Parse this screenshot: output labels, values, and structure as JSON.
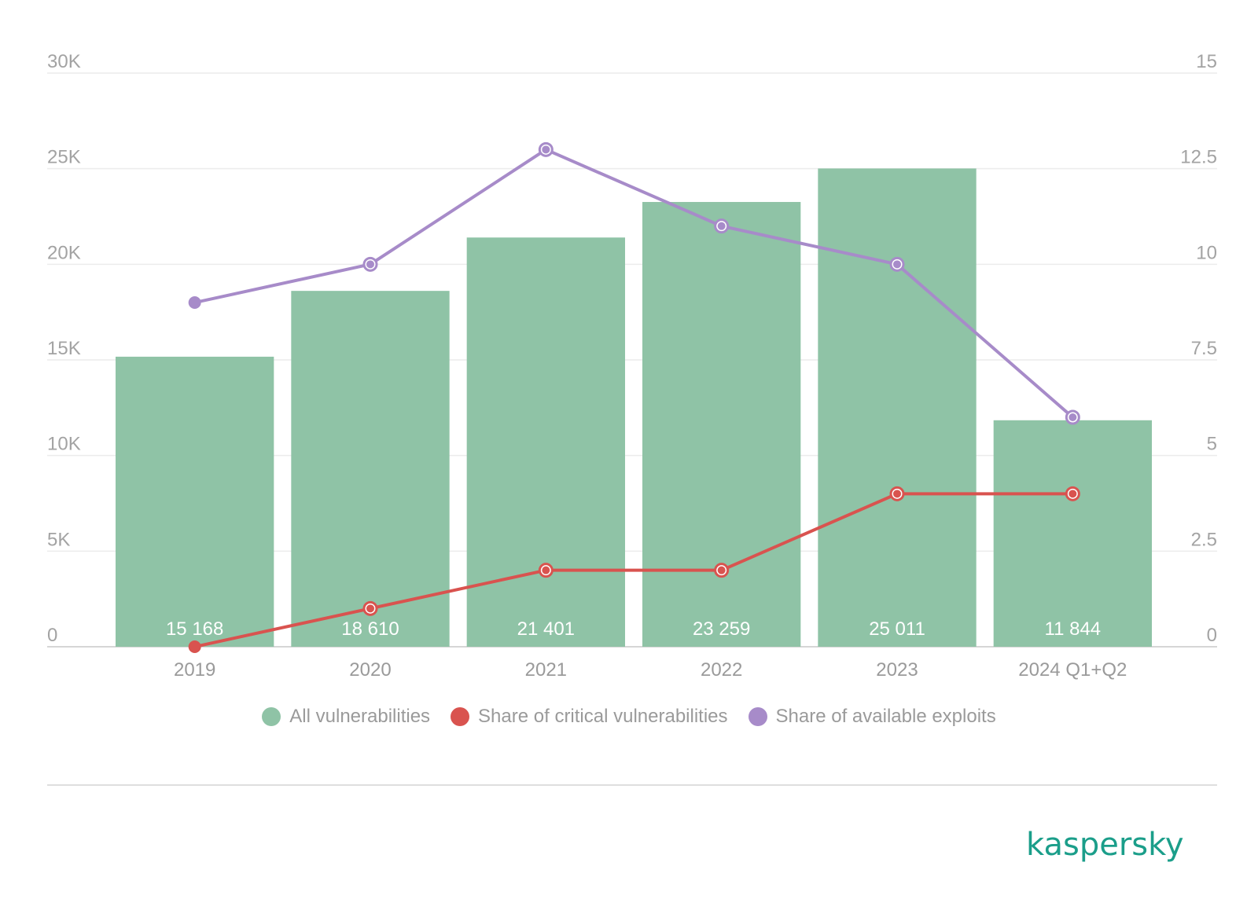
{
  "chart_data": {
    "type": "bar",
    "categories": [
      "2019",
      "2020",
      "2021",
      "2022",
      "2023",
      "2024 Q1+Q2"
    ],
    "series": [
      {
        "name": "All vulnerabilities",
        "type": "bar",
        "axis": "left",
        "color": "#8fc3a6",
        "values": [
          15168,
          18610,
          21401,
          23259,
          25011,
          11844
        ],
        "labels": [
          "15 168",
          "18 610",
          "21 401",
          "23 259",
          "25 011",
          "11 844"
        ]
      },
      {
        "name": "Share of critical vulnerabilities",
        "type": "line",
        "axis": "right",
        "color": "#d9534f",
        "values": [
          0,
          1,
          2,
          2,
          4,
          4
        ]
      },
      {
        "name": "Share of available exploits",
        "type": "line",
        "axis": "right",
        "color": "#a78bc9",
        "values": [
          9,
          10,
          13,
          11,
          10,
          6
        ]
      }
    ],
    "y_left": {
      "ylim": [
        0,
        30000
      ],
      "ticks": [
        0,
        5000,
        10000,
        15000,
        20000,
        25000,
        30000
      ],
      "tick_labels": [
        "0",
        "5K",
        "10K",
        "15K",
        "20K",
        "25K",
        "30K"
      ]
    },
    "y_right": {
      "ylim": [
        0,
        15
      ],
      "ticks": [
        0,
        2.5,
        5,
        7.5,
        10,
        12.5,
        15
      ],
      "tick_labels": [
        "0",
        "2.5",
        "5",
        "7.5",
        "10",
        "12.5",
        "15"
      ]
    },
    "grid": true,
    "legend_position": "bottom"
  },
  "logo": {
    "text": "kaspersky",
    "color": "#1b9e8a"
  }
}
